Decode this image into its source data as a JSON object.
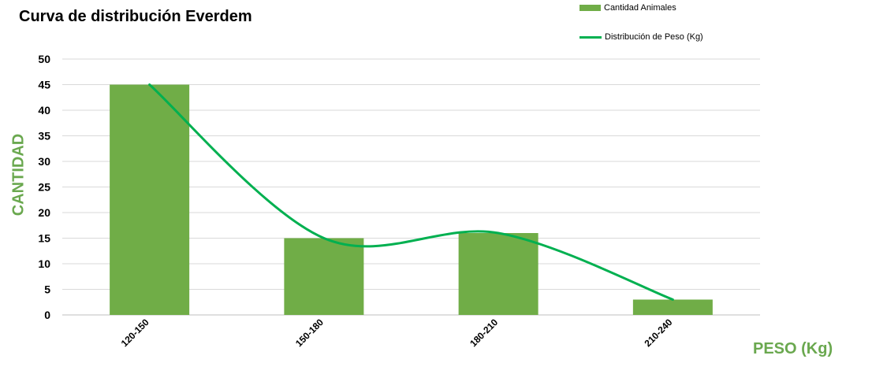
{
  "chart_data": {
    "type": "bar",
    "title": "Curva de distribución Everdem",
    "xlabel": "PESO (Kg)",
    "ylabel": "CANTIDAD",
    "categories": [
      "120-150",
      "150-180",
      "180-210",
      "210-240"
    ],
    "series": [
      {
        "name": "Cantidad Animales",
        "type": "bar",
        "values": [
          45,
          15,
          16,
          3
        ],
        "color": "#70ad47"
      },
      {
        "name": "Distribución de Peso (Kg)",
        "type": "line",
        "smooth": true,
        "values": [
          45,
          15,
          16,
          3
        ],
        "color": "#00b050"
      }
    ],
    "ylim": [
      0,
      50
    ],
    "yticks": [
      0,
      5,
      10,
      15,
      20,
      25,
      30,
      35,
      40,
      45,
      50
    ],
    "grid": true,
    "legend_position": "top-right"
  }
}
